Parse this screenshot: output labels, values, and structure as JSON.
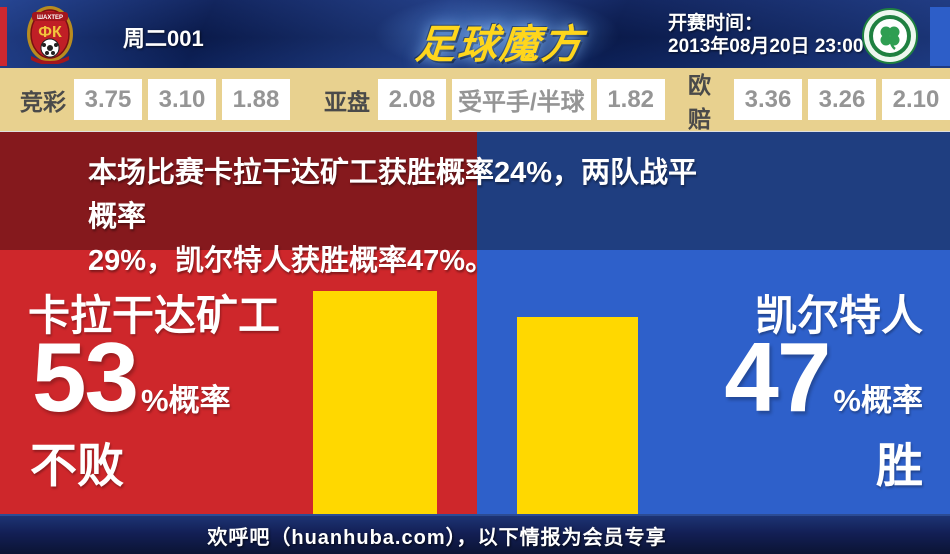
{
  "header": {
    "match_label": "周二001",
    "brand_logo_text": "足球魔方",
    "kickoff_label": "开赛时间：",
    "kickoff_datetime": "2013年08月20日 23:00",
    "home_badge_name": "shakhter-karagandy-crest",
    "away_badge_name": "celtic-crest"
  },
  "odds_bar": {
    "groups": [
      {
        "label": "竞彩",
        "values": [
          "3.75",
          "3.10",
          "1.88"
        ]
      },
      {
        "label": "亚盘",
        "values": [
          "2.08",
          "受平手/半球",
          "1.82"
        ]
      },
      {
        "label": "欧赔",
        "values": [
          "3.36",
          "3.26",
          "2.10"
        ]
      }
    ]
  },
  "analysis": {
    "line1": "本场比赛卡拉干达矿工获胜概率24%，两队战平概率",
    "line2": "29%，凯尔特人获胜概率47%。"
  },
  "home_panel": {
    "team": "卡拉干达矿工",
    "value": "53",
    "unit": "%概率",
    "outcome": "不败",
    "bar_percent": 53
  },
  "away_panel": {
    "team": "凯尔特人",
    "value": "47",
    "unit": "%概率",
    "outcome": "胜",
    "bar_percent": 47
  },
  "footer": {
    "text": "欢呼吧（huanhuba.com），以下情报为会员专享"
  },
  "probabilities": {
    "home_win_percent": 24,
    "draw_percent": 29,
    "away_win_percent": 47
  },
  "colors": {
    "dark_red": "#85191d",
    "dark_blue": "#1f3e80",
    "bright_red": "#ce272b",
    "bright_blue": "#2e60ca",
    "bar_yellow": "#ffd800",
    "odds_tan": "#e8d18f",
    "header_navy": "#0d2158"
  }
}
